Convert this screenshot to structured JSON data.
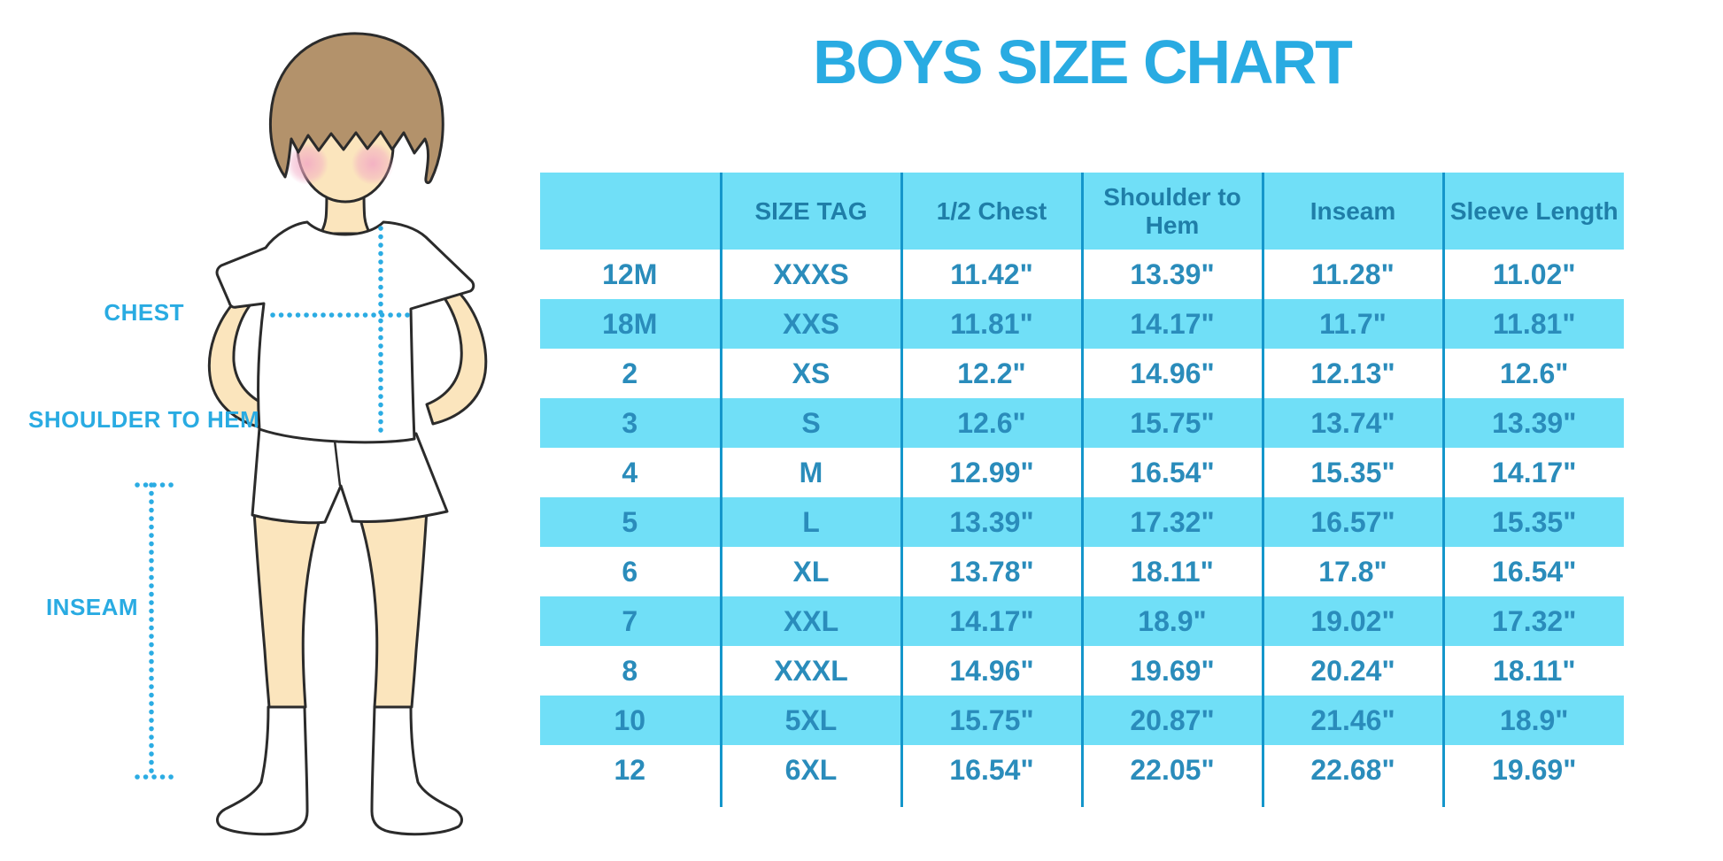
{
  "title": "BOYS SIZE CHART",
  "diagram": {
    "labels": {
      "chest": "CHEST",
      "shoulder_to_hem": "SHOULDER TO HEM",
      "inseam": "INSEAM"
    }
  },
  "chart_data": {
    "type": "table",
    "title": "BOYS SIZE CHART",
    "units": "inches",
    "columns": [
      "",
      "SIZE TAG",
      "1/2 Chest",
      "Shoulder to Hem",
      "Inseam",
      "Sleeve Length"
    ],
    "rows": [
      [
        "12M",
        "XXXS",
        "11.42\"",
        "13.39\"",
        "11.28\"",
        "11.02\""
      ],
      [
        "18M",
        "XXS",
        "11.81\"",
        "14.17\"",
        "11.7\"",
        "11.81\""
      ],
      [
        "2",
        "XS",
        "12.2\"",
        "14.96\"",
        "12.13\"",
        "12.6\""
      ],
      [
        "3",
        "S",
        "12.6\"",
        "15.75\"",
        "13.74\"",
        "13.39\""
      ],
      [
        "4",
        "M",
        "12.99\"",
        "16.54\"",
        "15.35\"",
        "14.17\""
      ],
      [
        "5",
        "L",
        "13.39\"",
        "17.32\"",
        "16.57\"",
        "15.35\""
      ],
      [
        "6",
        "XL",
        "13.78\"",
        "18.11\"",
        "17.8\"",
        "16.54\""
      ],
      [
        "7",
        "XXL",
        "14.17\"",
        "18.9\"",
        "19.02\"",
        "17.32\""
      ],
      [
        "8",
        "XXXL",
        "14.96\"",
        "19.69\"",
        "20.24\"",
        "18.11\""
      ],
      [
        "10",
        "5XL",
        "15.75\"",
        "20.87\"",
        "21.46\"",
        "18.9\""
      ],
      [
        "12",
        "6XL",
        "16.54\"",
        "22.05\"",
        "22.68\"",
        "19.69\""
      ]
    ],
    "layout": {
      "banded_rows": "alternating white / light blue starting white",
      "band_color": "#70DFF7",
      "grid_color": "#1496CB",
      "text_color": "#2A8CBB",
      "title_color": "#29ABE2"
    }
  }
}
